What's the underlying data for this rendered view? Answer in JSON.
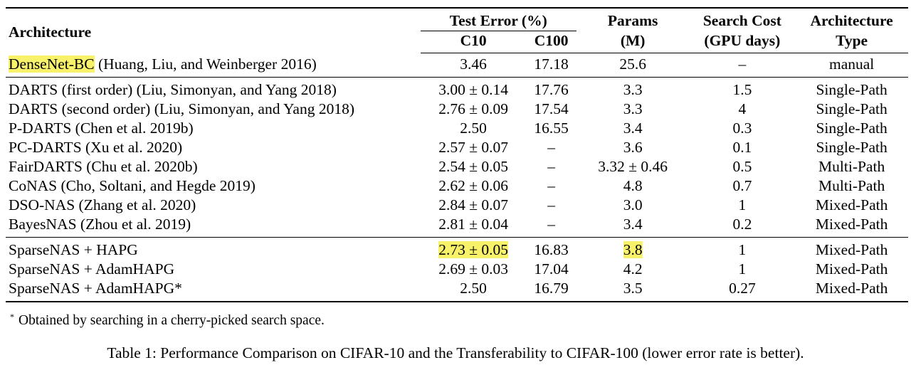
{
  "header": {
    "architecture": "Architecture",
    "test_error": "Test Error (%)",
    "c10": "C10",
    "c100": "C100",
    "params_l1": "Params",
    "params_l2": "(M)",
    "cost_l1": "Search Cost",
    "cost_l2": "(GPU days)",
    "type_l1": "Architecture",
    "type_l2": "Type"
  },
  "highlight_color": "#f8f26a",
  "baseline": {
    "name_highlight": "DenseNet-BC",
    "name_rest": " (Huang, Liu, and Weinberger 2016)",
    "c10": "3.46",
    "c100": "17.18",
    "params": "25.6",
    "cost": "–",
    "type": "manual"
  },
  "sota_rows": [
    {
      "name": "DARTS (first order) (Liu, Simonyan, and Yang 2018)",
      "c10": "3.00 ± 0.14",
      "c100": "17.76",
      "params": "3.3",
      "cost": "1.5",
      "type": "Single-Path"
    },
    {
      "name": "DARTS (second order) (Liu, Simonyan, and Yang 2018)",
      "c10": "2.76 ± 0.09",
      "c100": "17.54",
      "params": "3.3",
      "cost": "4",
      "type": "Single-Path"
    },
    {
      "name": "P-DARTS (Chen et al. 2019b)",
      "c10": "2.50",
      "c100": "16.55",
      "params": "3.4",
      "cost": "0.3",
      "type": "Single-Path"
    },
    {
      "name": "PC-DARTS (Xu et al. 2020)",
      "c10": "2.57 ± 0.07",
      "c100": "–",
      "params": "3.6",
      "cost": "0.1",
      "type": "Single-Path"
    },
    {
      "name": "FairDARTS (Chu et al. 2020b)",
      "c10": "2.54 ± 0.05",
      "c100": "–",
      "params": "3.32 ± 0.46",
      "cost": "0.5",
      "type": "Multi-Path"
    },
    {
      "name": "CoNAS (Cho, Soltani, and Hegde 2019)",
      "c10": "2.62 ± 0.06",
      "c100": "–",
      "params": "4.8",
      "cost": "0.7",
      "type": "Multi-Path"
    },
    {
      "name": "DSO-NAS (Zhang et al. 2020)",
      "c10": "2.84 ± 0.07",
      "c100": "–",
      "params": "3.0",
      "cost": "1",
      "type": "Mixed-Path"
    },
    {
      "name": "BayesNAS (Zhou et al. 2019)",
      "c10": "2.81 ± 0.04",
      "c100": "–",
      "params": "3.4",
      "cost": "0.2",
      "type": "Mixed-Path"
    }
  ],
  "ours_rows": [
    {
      "name": "SparseNAS + HAPG",
      "c10": "2.73 ± 0.05",
      "c100": "16.83",
      "params": "3.8",
      "cost": "1",
      "type": "Mixed-Path"
    },
    {
      "name": "SparseNAS + AdamHAPG",
      "c10": "2.69 ± 0.03",
      "c100": "17.04",
      "params": "4.2",
      "cost": "1",
      "type": "Mixed-Path"
    },
    {
      "name": "SparseNAS + AdamHAPG*",
      "c10": "2.50",
      "c100": "16.79",
      "params": "3.5",
      "cost": "0.27",
      "type": "Mixed-Path"
    }
  ],
  "footnote": {
    "marker": "*",
    "text": "Obtained by searching in a cherry-picked search space."
  },
  "caption": "Table 1: Performance Comparison on CIFAR-10 and the Transferability to CIFAR-100 (lower error rate is better)."
}
